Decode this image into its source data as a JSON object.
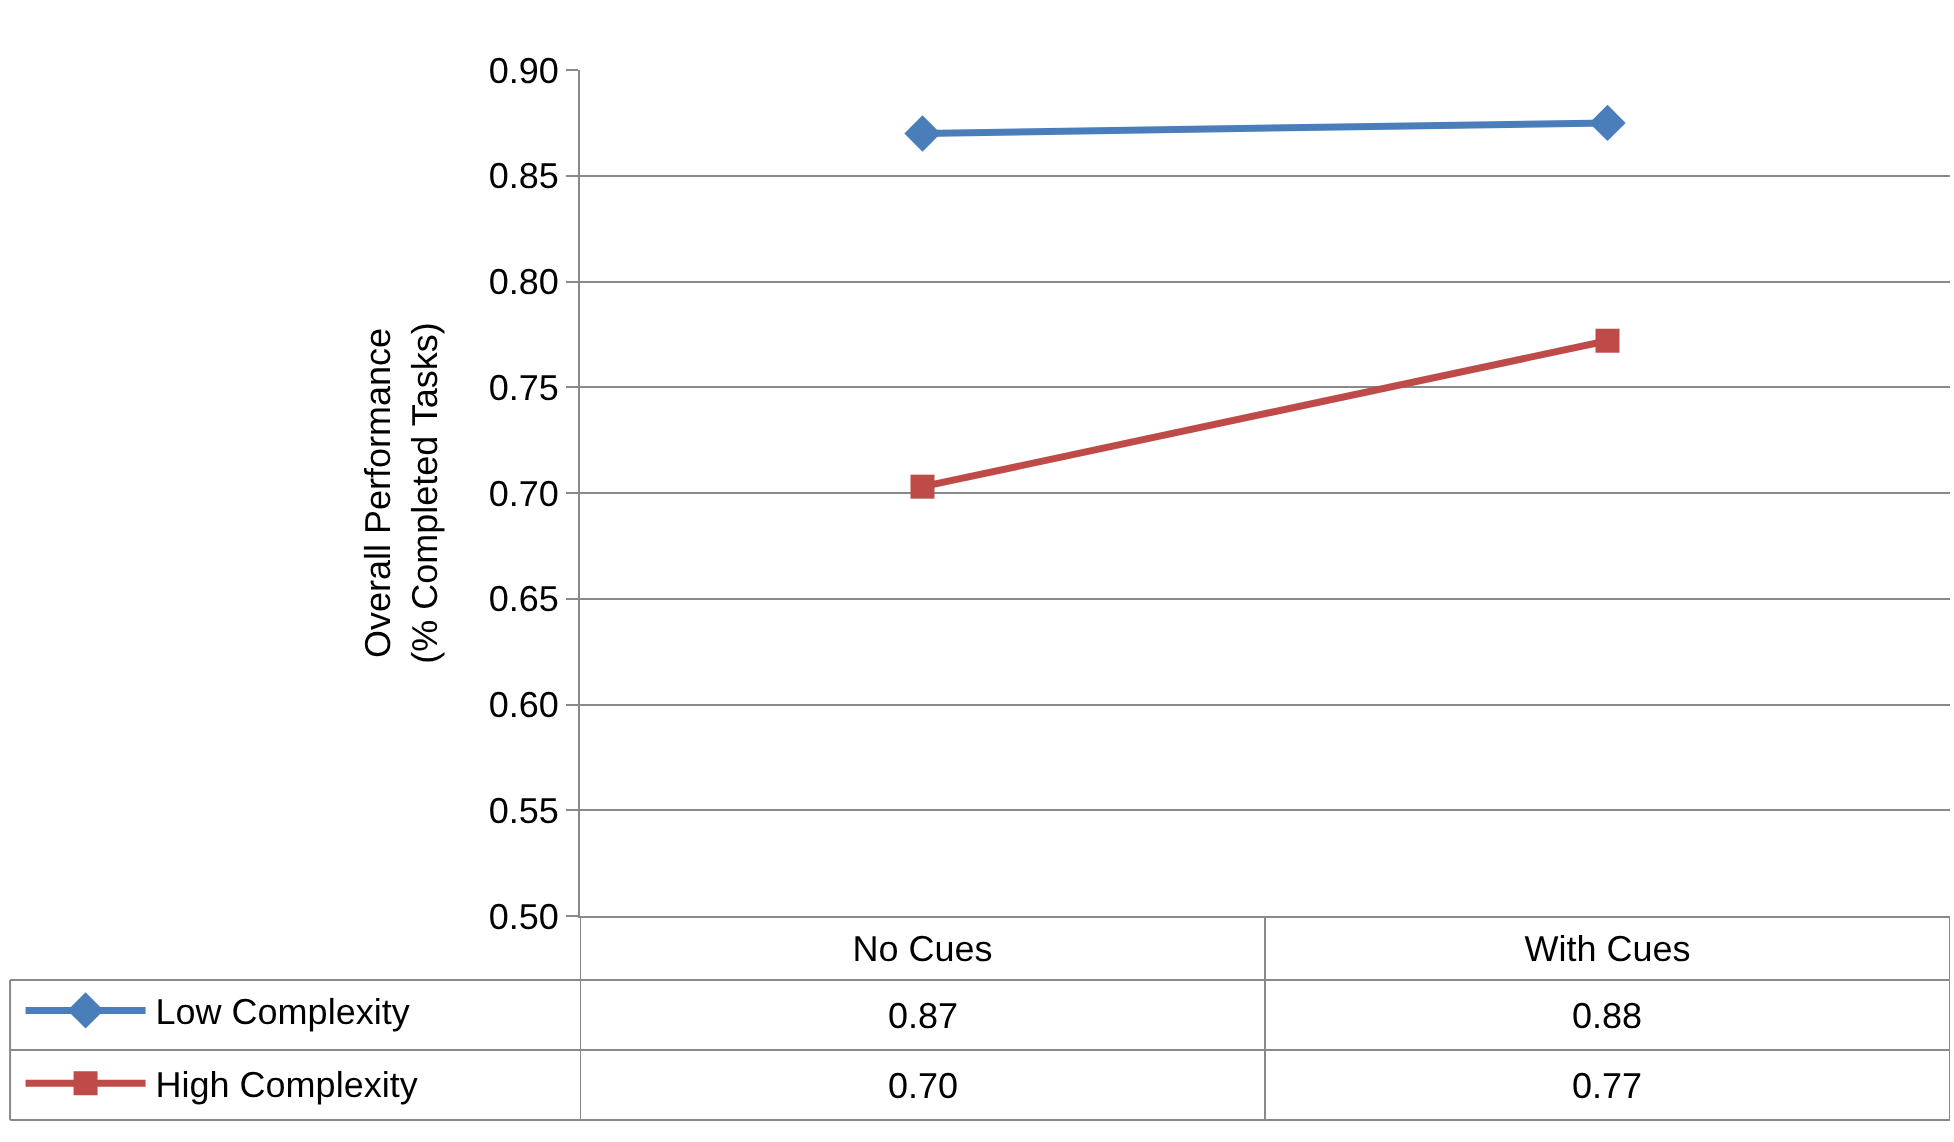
{
  "chart_data": {
    "type": "line",
    "ylabel": "Overall Performance\n(% Completed Tasks)",
    "categories": [
      "No Cues",
      "With Cues"
    ],
    "series": [
      {
        "name": "Low Complexity",
        "color": "#4a7ebb",
        "marker": "diamond",
        "values": [
          0.87,
          0.875
        ],
        "value_labels": [
          "0.87",
          "0.88"
        ]
      },
      {
        "name": "High Complexity",
        "color": "#be4b48",
        "marker": "square",
        "values": [
          0.703,
          0.772
        ],
        "value_labels": [
          "0.70",
          "0.77"
        ]
      }
    ],
    "ylim": [
      0.5,
      0.9
    ],
    "yticks": [
      "0.50",
      "0.55",
      "0.60",
      "0.65",
      "0.70",
      "0.75",
      "0.80",
      "0.85",
      "0.90"
    ],
    "grid": "y",
    "legend": "bottom left",
    "line_style": "solid"
  }
}
